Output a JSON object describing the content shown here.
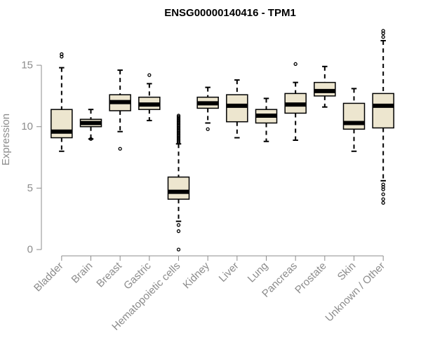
{
  "chart_data": {
    "type": "boxplot",
    "title": "ENSG00000140416 - TPM1",
    "ylabel": "Expression",
    "xlabel": "",
    "ylim": [
      0,
      17.8
    ],
    "yticks": [
      0,
      5,
      10,
      15
    ],
    "box_fill": "#ede6cf",
    "box_stroke": "#000000",
    "median_color": "#000000",
    "axis_color": "#8c8c8c",
    "categories": [
      "Bladder",
      "Brain",
      "Breast",
      "Gastric",
      "Hematopoietic cells",
      "Kidney",
      "Liver",
      "Lung",
      "Pancreas",
      "Prostate",
      "Skin",
      "Unknown / Other"
    ],
    "boxes": [
      {
        "whisker_low": 8.0,
        "q1": 9.1,
        "median": 9.6,
        "q3": 11.4,
        "whisker_high": 14.8,
        "outliers": [
          15.7,
          15.9
        ]
      },
      {
        "whisker_low": 9.0,
        "q1": 10.0,
        "median": 10.3,
        "q3": 10.6,
        "whisker_high": 11.4,
        "outliers": [
          9.0
        ]
      },
      {
        "whisker_low": 9.6,
        "q1": 11.3,
        "median": 12.0,
        "q3": 12.6,
        "whisker_high": 14.6,
        "outliers": [
          8.2
        ]
      },
      {
        "whisker_low": 10.5,
        "q1": 11.4,
        "median": 11.8,
        "q3": 12.4,
        "whisker_high": 13.5,
        "outliers": [
          14.2
        ]
      },
      {
        "whisker_low": 2.3,
        "q1": 4.1,
        "median": 4.7,
        "q3": 5.9,
        "whisker_high": 8.6,
        "outliers": [
          0.0,
          1.5,
          2.0,
          8.7,
          8.8,
          8.9,
          9.0,
          9.1,
          9.2,
          9.3,
          9.4,
          9.5,
          9.6,
          9.7,
          9.8,
          9.9,
          10.0,
          10.1,
          10.2,
          10.3,
          10.4,
          10.5,
          10.6,
          10.7,
          10.8,
          10.9
        ]
      },
      {
        "whisker_low": 10.3,
        "q1": 11.5,
        "median": 11.9,
        "q3": 12.4,
        "whisker_high": 13.2,
        "outliers": [
          9.8
        ]
      },
      {
        "whisker_low": 9.1,
        "q1": 10.4,
        "median": 11.7,
        "q3": 12.6,
        "whisker_high": 13.8,
        "outliers": []
      },
      {
        "whisker_low": 8.8,
        "q1": 10.3,
        "median": 10.9,
        "q3": 11.4,
        "whisker_high": 12.3,
        "outliers": []
      },
      {
        "whisker_low": 8.9,
        "q1": 11.1,
        "median": 11.8,
        "q3": 12.7,
        "whisker_high": 13.6,
        "outliers": [
          15.1
        ]
      },
      {
        "whisker_low": 11.6,
        "q1": 12.5,
        "median": 12.9,
        "q3": 13.6,
        "whisker_high": 14.9,
        "outliers": []
      },
      {
        "whisker_low": 8.0,
        "q1": 9.8,
        "median": 10.3,
        "q3": 11.9,
        "whisker_high": 13.1,
        "outliers": []
      },
      {
        "whisker_low": 5.6,
        "q1": 9.9,
        "median": 11.7,
        "q3": 12.7,
        "whisker_high": 17.0,
        "outliers": [
          3.8,
          4.1,
          4.5,
          4.9,
          5.1,
          5.3,
          17.3,
          17.6,
          17.8
        ]
      }
    ]
  }
}
